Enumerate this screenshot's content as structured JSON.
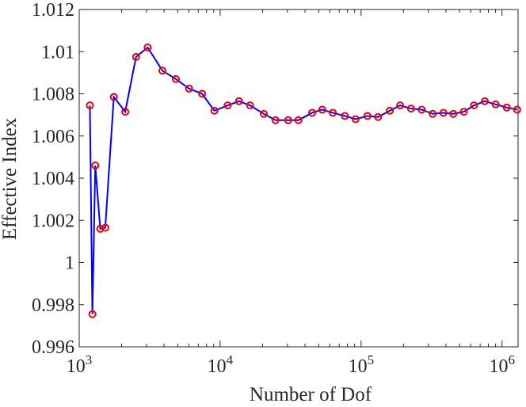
{
  "chart_data": {
    "type": "line",
    "title": "",
    "xlabel": "Number of Dof",
    "ylabel": "Effective Index",
    "xscale": "log",
    "xlim": [
      1000,
      1300000
    ],
    "ylim": [
      0.996,
      1.012
    ],
    "grid": false,
    "legend": "none",
    "x_tick_labels": [
      {
        "base": "10",
        "exp": "3"
      },
      {
        "base": "10",
        "exp": "4"
      },
      {
        "base": "10",
        "exp": "5"
      },
      {
        "base": "10",
        "exp": "6"
      }
    ],
    "x_tick_values": [
      1000,
      10000,
      100000,
      1000000
    ],
    "y_tick_values": [
      0.996,
      0.998,
      1.0,
      1.002,
      1.004,
      1.006,
      1.008,
      1.01,
      1.012
    ],
    "y_tick_labels": [
      "0.996",
      "0.998",
      "1",
      "1.002",
      "1.004",
      "1.006",
      "1.008",
      "1.01",
      "1.012"
    ],
    "line_color": "#0000ff",
    "marker_color": "#e8000b",
    "series": [
      {
        "x": [
          1190,
          1240,
          1300,
          1410,
          1530,
          1760,
          2120,
          2530,
          3060,
          3890,
          4850,
          6010,
          7450,
          9100,
          11300,
          13600,
          16300,
          20400,
          24700,
          30400,
          35900,
          44900,
          53000,
          63000,
          76800,
          91300,
          111000,
          132000,
          160000,
          189000,
          226000,
          269000,
          322000,
          384000,
          451000,
          536000,
          632000,
          754000,
          900000,
          1080000,
          1280000
        ],
        "values": [
          1.00745,
          0.99755,
          1.0046,
          1.0016,
          1.00165,
          1.00785,
          1.00715,
          1.00975,
          1.0102,
          1.0091,
          1.0087,
          1.00825,
          1.008,
          1.0072,
          1.00745,
          1.00765,
          1.00745,
          1.00705,
          1.00675,
          1.00675,
          1.00675,
          1.0071,
          1.00725,
          1.0071,
          1.00695,
          1.0068,
          1.00695,
          1.0069,
          1.0072,
          1.00745,
          1.0073,
          1.00725,
          1.00705,
          1.0071,
          1.00705,
          1.00715,
          1.00745,
          1.00765,
          1.0075,
          1.00735,
          1.00725
        ]
      }
    ]
  }
}
